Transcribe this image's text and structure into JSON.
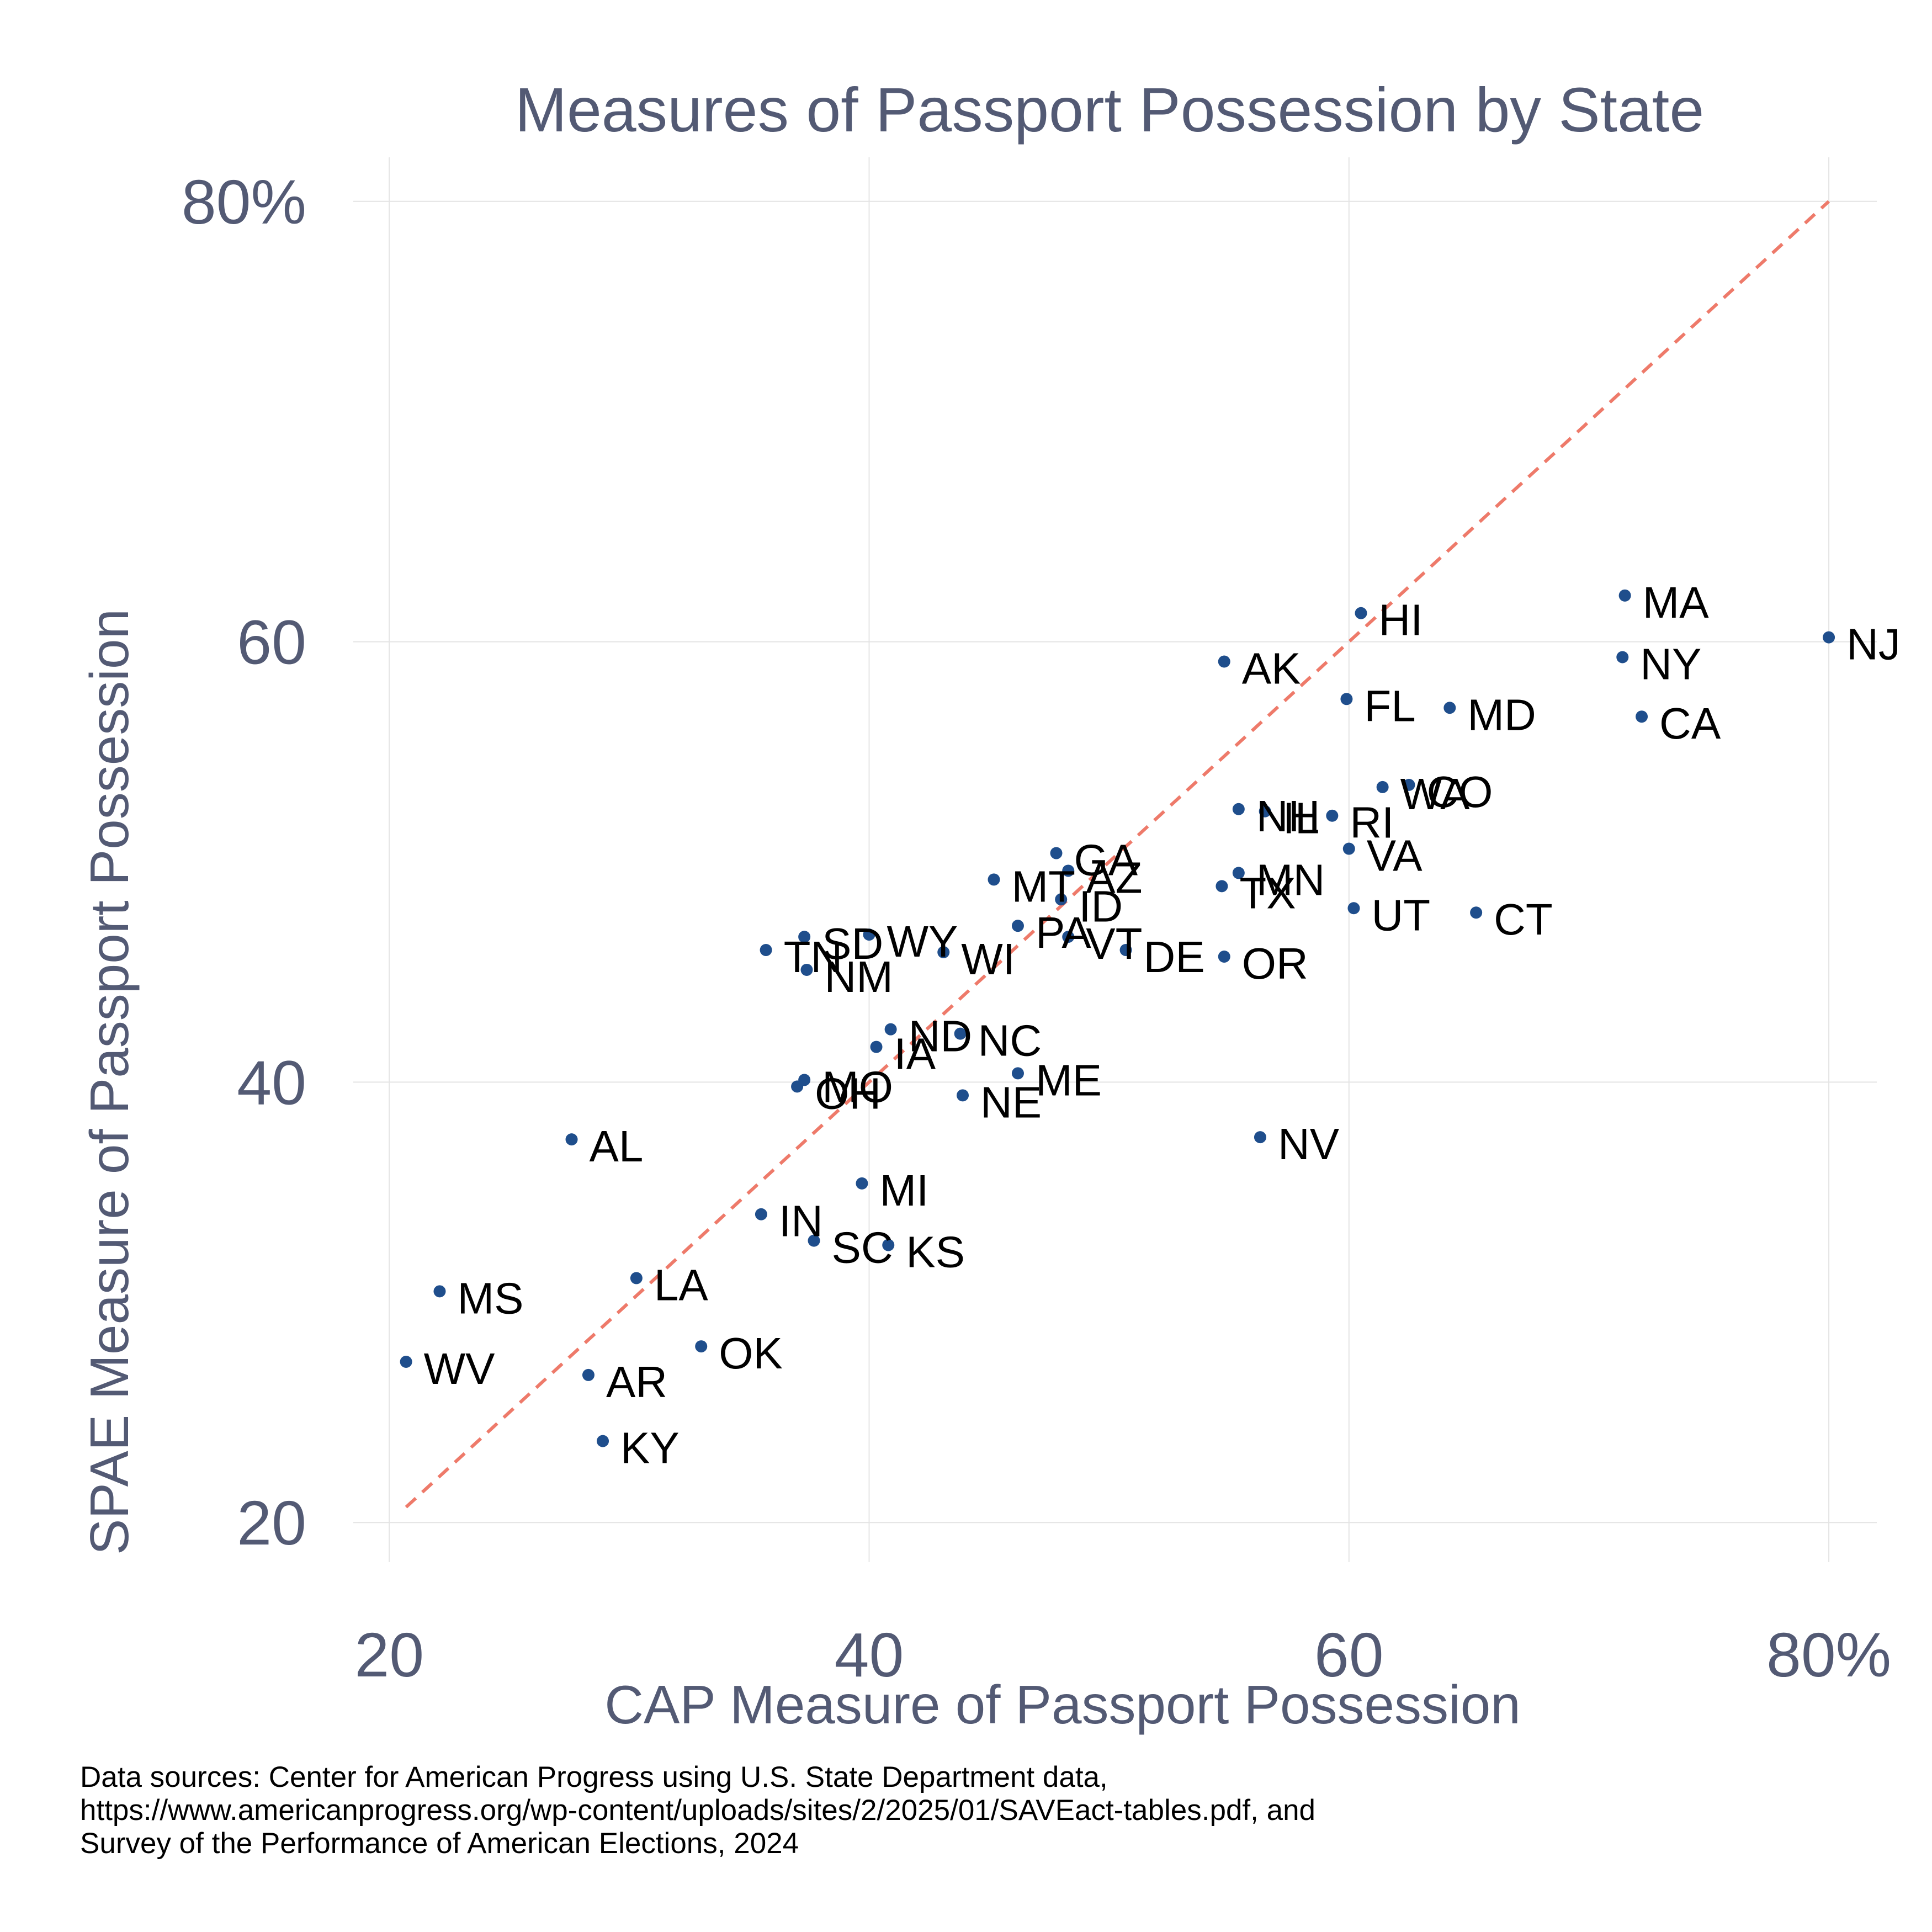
{
  "chart_data": {
    "type": "scatter",
    "title": "Measures of Passport Possession by State",
    "xlabel": "CAP Measure of Passport Possession",
    "ylabel": "SPAE Measure of Passport Possession",
    "xlim": [
      18.5,
      82
    ],
    "ylim": [
      18.2,
      82
    ],
    "x_ticks": [
      20,
      40,
      60,
      80
    ],
    "x_tick_labels": [
      "20",
      "40",
      "60",
      "80%"
    ],
    "y_ticks": [
      20,
      40,
      60,
      80
    ],
    "y_tick_labels": [
      "20",
      "40",
      "60",
      "80%"
    ],
    "grid": true,
    "reference_line": {
      "type": "y=x",
      "style": "dashed",
      "from": 20.7,
      "to": 80
    },
    "point_color": "#1f4e8c",
    "reference_color": "#ee7a6a",
    "points": [
      {
        "label": "NJ",
        "x": 80.0,
        "y": 60.2
      },
      {
        "label": "MA",
        "x": 71.5,
        "y": 62.1
      },
      {
        "label": "NY",
        "x": 71.4,
        "y": 59.3
      },
      {
        "label": "CA",
        "x": 72.2,
        "y": 56.6
      },
      {
        "label": "HI",
        "x": 60.5,
        "y": 61.3
      },
      {
        "label": "AK",
        "x": 54.8,
        "y": 59.1
      },
      {
        "label": "FL",
        "x": 59.9,
        "y": 57.4
      },
      {
        "label": "MD",
        "x": 64.2,
        "y": 57.0
      },
      {
        "label": "WA",
        "x": 61.4,
        "y": 53.4
      },
      {
        "label": "CO",
        "x": 62.5,
        "y": 53.5
      },
      {
        "label": "NH",
        "x": 55.4,
        "y": 52.4
      },
      {
        "label": "IL",
        "x": 56.5,
        "y": 52.3
      },
      {
        "label": "RI",
        "x": 59.3,
        "y": 52.1
      },
      {
        "label": "VA",
        "x": 60.0,
        "y": 50.6
      },
      {
        "label": "MN",
        "x": 55.4,
        "y": 49.5
      },
      {
        "label": "TX",
        "x": 54.7,
        "y": 48.9
      },
      {
        "label": "UT",
        "x": 60.2,
        "y": 47.9
      },
      {
        "label": "CT",
        "x": 65.3,
        "y": 47.7
      },
      {
        "label": "OR",
        "x": 54.8,
        "y": 45.7
      },
      {
        "label": "GA",
        "x": 47.8,
        "y": 50.4
      },
      {
        "label": "AZ",
        "x": 48.3,
        "y": 49.6
      },
      {
        "label": "MT",
        "x": 45.2,
        "y": 49.2
      },
      {
        "label": "ID",
        "x": 48.0,
        "y": 48.3
      },
      {
        "label": "PA",
        "x": 46.2,
        "y": 47.1
      },
      {
        "label": "VT",
        "x": 48.3,
        "y": 46.6
      },
      {
        "label": "DE",
        "x": 50.7,
        "y": 46.0
      },
      {
        "label": "WI",
        "x": 43.1,
        "y": 45.9
      },
      {
        "label": "WY",
        "x": 40.0,
        "y": 46.7
      },
      {
        "label": "SD",
        "x": 37.3,
        "y": 46.6
      },
      {
        "label": "TN",
        "x": 35.7,
        "y": 46.0
      },
      {
        "label": "NM",
        "x": 37.4,
        "y": 45.1
      },
      {
        "label": "ND",
        "x": 40.9,
        "y": 42.4
      },
      {
        "label": "NC",
        "x": 43.8,
        "y": 42.2
      },
      {
        "label": "IA",
        "x": 40.3,
        "y": 41.6
      },
      {
        "label": "ME",
        "x": 46.2,
        "y": 40.4
      },
      {
        "label": "NE",
        "x": 43.9,
        "y": 39.4
      },
      {
        "label": "MO",
        "x": 37.3,
        "y": 40.1
      },
      {
        "label": "OH",
        "x": 37.0,
        "y": 39.8
      },
      {
        "label": "NV",
        "x": 56.3,
        "y": 37.5
      },
      {
        "label": "AL",
        "x": 27.6,
        "y": 37.4
      },
      {
        "label": "MI",
        "x": 39.7,
        "y": 35.4
      },
      {
        "label": "IN",
        "x": 35.5,
        "y": 34.0
      },
      {
        "label": "SC",
        "x": 37.7,
        "y": 32.8
      },
      {
        "label": "KS",
        "x": 40.8,
        "y": 32.6
      },
      {
        "label": "LA",
        "x": 30.3,
        "y": 31.1
      },
      {
        "label": "MS",
        "x": 22.1,
        "y": 30.5
      },
      {
        "label": "OK",
        "x": 33.0,
        "y": 28.0
      },
      {
        "label": "WV",
        "x": 20.7,
        "y": 27.3
      },
      {
        "label": "AR",
        "x": 28.3,
        "y": 26.7
      },
      {
        "label": "KY",
        "x": 28.9,
        "y": 23.7
      }
    ]
  },
  "source_note": {
    "lines": [
      "Data sources: Center for American Progress using U.S. State Department data,",
      "https://www.americanprogress.org/wp-content/uploads/sites/2/2025/01/SAVEact-tables.pdf, and",
      "Survey of the Performance of American Elections, 2024"
    ]
  }
}
